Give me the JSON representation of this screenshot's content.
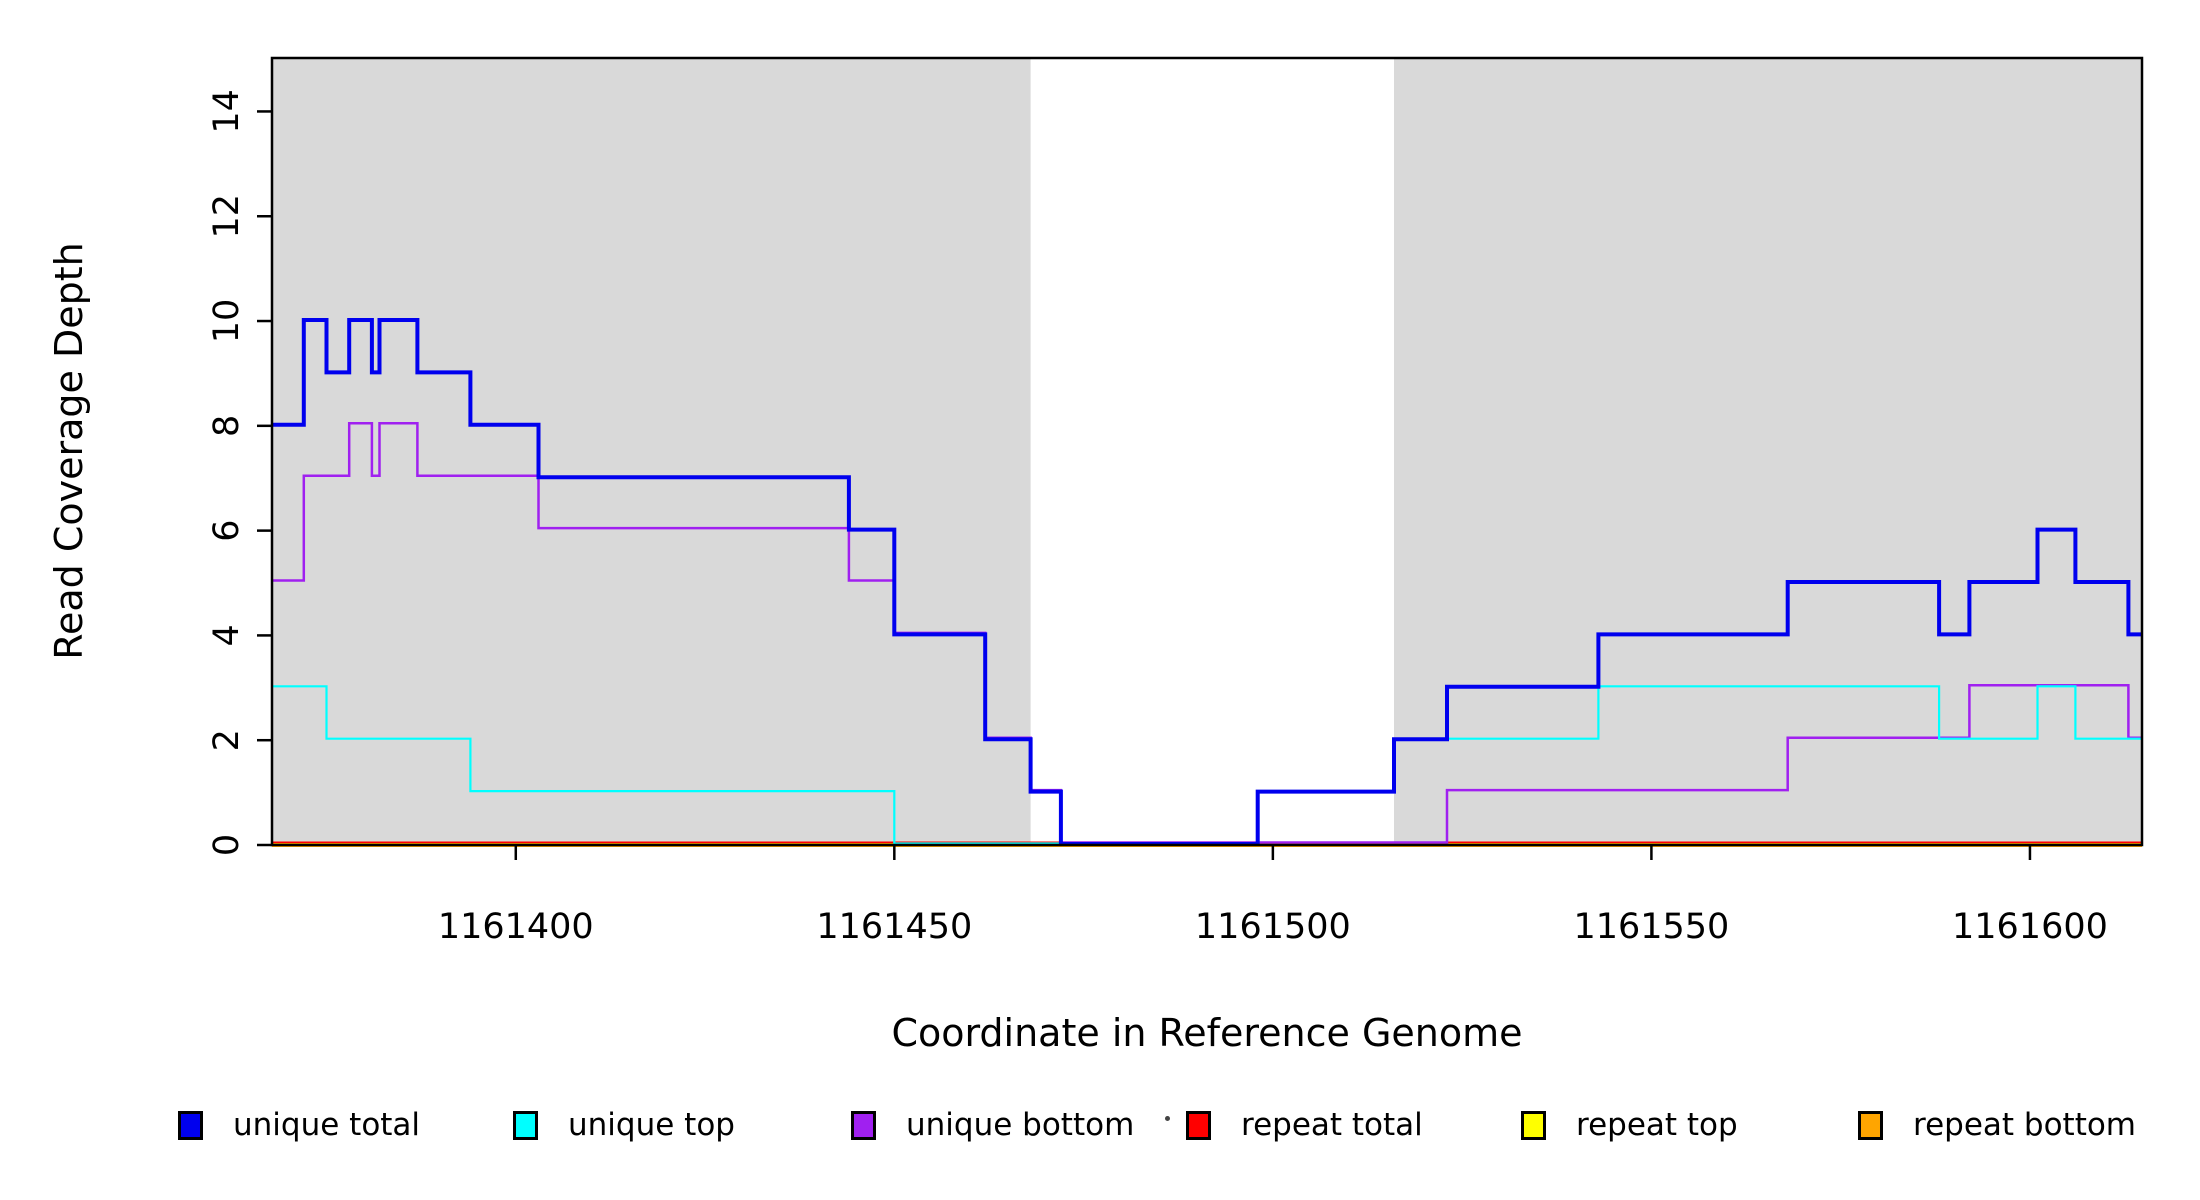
{
  "chart_data": {
    "type": "line",
    "subtype": "step",
    "title": "",
    "xlabel": "Coordinate in Reference Genome",
    "ylabel": "Read Coverage Depth",
    "xlim": [
      1161367.8,
      1161614.8
    ],
    "ylim": [
      0,
      15.02
    ],
    "x_ticks": [
      1161400,
      1161450,
      1161500,
      1161550,
      1161600
    ],
    "y_ticks": [
      0,
      2,
      4,
      6,
      8,
      10,
      12,
      14
    ],
    "grid": false,
    "legend_position": "bottom",
    "background_color": "#FFFFFF",
    "shaded_band_color": "#D9D9D9",
    "shaded_x_ranges": [
      [
        1161367.8,
        1161468
      ],
      [
        1161516,
        1161614.8
      ]
    ],
    "series": [
      {
        "name": "unique total",
        "color": "#0000EE",
        "width": 4,
        "y_offset": -1,
        "steps": [
          [
            1161367.8,
            8
          ],
          [
            1161372,
            10
          ],
          [
            1161375,
            9
          ],
          [
            1161378,
            10
          ],
          [
            1161381,
            9
          ],
          [
            1161382,
            10
          ],
          [
            1161387,
            9
          ],
          [
            1161394,
            8
          ],
          [
            1161403,
            7
          ],
          [
            1161444,
            6
          ],
          [
            1161450,
            4
          ],
          [
            1161462,
            2
          ],
          [
            1161468,
            1
          ],
          [
            1161472,
            0
          ],
          [
            1161498,
            1
          ],
          [
            1161516,
            2
          ],
          [
            1161523,
            3
          ],
          [
            1161543,
            4
          ],
          [
            1161568,
            5
          ],
          [
            1161588,
            4
          ],
          [
            1161592,
            5
          ],
          [
            1161601,
            6
          ],
          [
            1161606,
            5
          ],
          [
            1161613,
            4
          ]
        ]
      },
      {
        "name": "unique top",
        "color": "#00FFFF",
        "width": 2.2,
        "y_offset": -1.5,
        "steps": [
          [
            1161367.8,
            3
          ],
          [
            1161375,
            2
          ],
          [
            1161394,
            1
          ],
          [
            1161450,
            0
          ],
          [
            1161498,
            1
          ],
          [
            1161516,
            2
          ],
          [
            1161543,
            3
          ],
          [
            1161588,
            2
          ],
          [
            1161601,
            3
          ],
          [
            1161606,
            2
          ]
        ]
      },
      {
        "name": "unique bottom",
        "color": "#A020F0",
        "width": 2.5,
        "y_offset": -2.5,
        "steps": [
          [
            1161367.8,
            5
          ],
          [
            1161372,
            7
          ],
          [
            1161378,
            8
          ],
          [
            1161381,
            7
          ],
          [
            1161382,
            8
          ],
          [
            1161387,
            7
          ],
          [
            1161403,
            6
          ],
          [
            1161444,
            5
          ],
          [
            1161450,
            4
          ],
          [
            1161462,
            2
          ],
          [
            1161468,
            1
          ],
          [
            1161472,
            0
          ],
          [
            1161523,
            1
          ],
          [
            1161568,
            2
          ],
          [
            1161592,
            3
          ],
          [
            1161613,
            2
          ]
        ]
      },
      {
        "name": "repeat total",
        "color": "#FF0000",
        "width": 2,
        "y_offset": -2.5,
        "steps": [
          [
            1161367.8,
            0
          ]
        ]
      },
      {
        "name": "repeat top",
        "color": "#FFFF00",
        "width": 2,
        "y_offset": 0,
        "steps": [
          [
            1161367.8,
            0
          ]
        ]
      },
      {
        "name": "repeat bottom",
        "color": "#FFA500",
        "width": 4,
        "y_offset": 0,
        "steps": [
          [
            1161367.8,
            0
          ]
        ]
      }
    ],
    "draw_order": [
      "repeat top",
      "repeat total",
      "repeat bottom",
      "unique bottom",
      "unique top",
      "unique total"
    ],
    "legend": [
      {
        "label": "unique total",
        "color": "#0000EE"
      },
      {
        "label": "unique top",
        "color": "#00FFFF"
      },
      {
        "label": "unique bottom",
        "color": "#A020F0"
      },
      {
        "label": "repeat total",
        "color": "#FF0000"
      },
      {
        "label": "repeat top",
        "color": "#FFFF00"
      },
      {
        "label": "repeat bottom",
        "color": "#FFA500"
      }
    ],
    "stray_mark": "."
  }
}
